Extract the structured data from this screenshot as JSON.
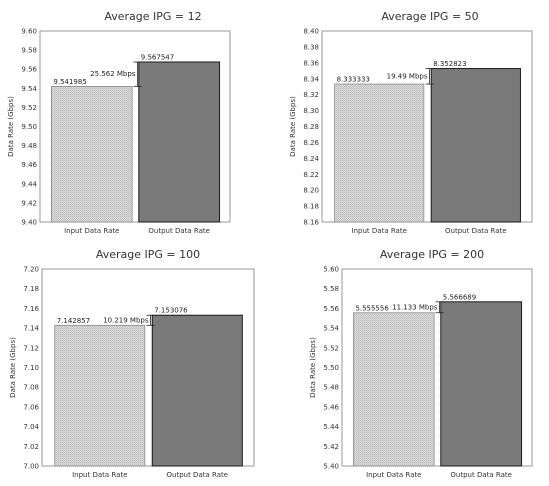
{
  "chart_data": [
    {
      "type": "bar",
      "title": "Average IPG = 12",
      "ylabel": "Data Rate (Gbps)",
      "xlabel": "",
      "categories": [
        "Input Data Rate",
        "Output Data Rate"
      ],
      "values": [
        9.541985,
        9.567547
      ],
      "data_labels": [
        "9.541985",
        "9.567547"
      ],
      "ylim": [
        9.4,
        9.6
      ],
      "yticks": [
        "9.40",
        "9.42",
        "9.44",
        "9.46",
        "9.48",
        "9.50",
        "9.52",
        "9.54",
        "9.56",
        "9.58",
        "9.60"
      ],
      "difference_label": "25.562 Mbps",
      "grid": false,
      "colors": {
        "input": "#d4d4d4",
        "output": "#7a7a7a"
      }
    },
    {
      "type": "bar",
      "title": "Average IPG = 50",
      "ylabel": "Data Rate (Gbps)",
      "xlabel": "",
      "categories": [
        "Input Data Rate",
        "Output Data Rate"
      ],
      "values": [
        8.333333,
        8.352823
      ],
      "data_labels": [
        "8.333333",
        "8.352823"
      ],
      "ylim": [
        8.16,
        8.4
      ],
      "yticks": [
        "8.16",
        "8.18",
        "8.20",
        "8.22",
        "8.24",
        "8.26",
        "8.28",
        "8.30",
        "8.32",
        "8.34",
        "8.36",
        "8.38",
        "8.40"
      ],
      "difference_label": "19.49 Mbps",
      "grid": false,
      "colors": {
        "input": "#d4d4d4",
        "output": "#7a7a7a"
      }
    },
    {
      "type": "bar",
      "title": "Average IPG = 100",
      "ylabel": "Data Rate (Gbps)",
      "xlabel": "",
      "categories": [
        "Input Data Rate",
        "Output Data Rate"
      ],
      "values": [
        7.142857,
        7.153076
      ],
      "data_labels": [
        "7.142857",
        "7.153076"
      ],
      "ylim": [
        7.0,
        7.2
      ],
      "yticks": [
        "7.00",
        "7.02",
        "7.04",
        "7.06",
        "7.08",
        "7.10",
        "7.12",
        "7.14",
        "7.16",
        "7.18",
        "7.20"
      ],
      "difference_label": "10.219 Mbps",
      "grid": false,
      "colors": {
        "input": "#d4d4d4",
        "output": "#7a7a7a"
      }
    },
    {
      "type": "bar",
      "title": "Average IPG = 200",
      "ylabel": "Data Rate (Gbps)",
      "xlabel": "",
      "categories": [
        "Input Data Rate",
        "Output Data Rate"
      ],
      "values": [
        5.555556,
        5.566689
      ],
      "data_labels": [
        "5.555556",
        "5.566689"
      ],
      "ylim": [
        5.4,
        5.6
      ],
      "yticks": [
        "5.40",
        "5.42",
        "5.44",
        "5.46",
        "5.48",
        "5.50",
        "5.52",
        "5.54",
        "5.56",
        "5.58",
        "5.60"
      ],
      "difference_label": "11.133 Mbps",
      "grid": false,
      "colors": {
        "input": "#d4d4d4",
        "output": "#7a7a7a"
      }
    }
  ]
}
